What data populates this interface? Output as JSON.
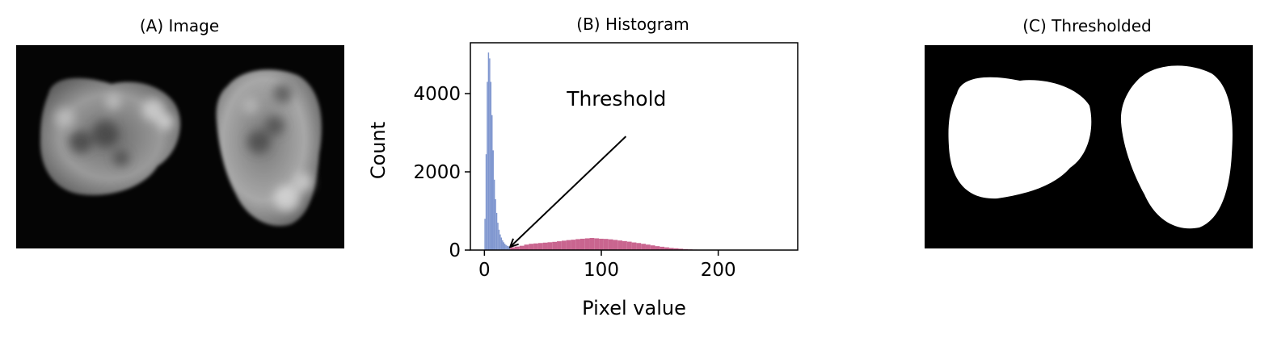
{
  "panels": {
    "image": {
      "title": "(A) Image"
    },
    "histogram": {
      "title": "(B) Histogram"
    },
    "thresholded": {
      "title": "(C) Thresholded"
    }
  },
  "colors": {
    "background_class": "#7f96cf",
    "foreground_class": "#c9658f",
    "image_background": "#000000",
    "mask_foreground": "#ffffff"
  },
  "chart_data": {
    "type": "bar",
    "title": "(B) Histogram",
    "xlabel": "Pixel value",
    "ylabel": "Count",
    "xlim": [
      -12,
      268
    ],
    "ylim": [
      0,
      5300
    ],
    "xticks": [
      0,
      100,
      200
    ],
    "yticks": [
      0,
      2000,
      4000
    ],
    "grid": false,
    "threshold": 22,
    "annotation": {
      "text": "Threshold",
      "text_x": 113,
      "text_y": 3400,
      "point_x": 22,
      "point_y": 80
    },
    "series": [
      {
        "bins": [
          0,
          1,
          2,
          3,
          4,
          5,
          6,
          7,
          8,
          9,
          10,
          11,
          12,
          13,
          14,
          15,
          16,
          17,
          18,
          19,
          20,
          21
        ],
        "counts": [
          800,
          2450,
          4300,
          5050,
          4900,
          4300,
          3450,
          2550,
          1800,
          1300,
          950,
          700,
          520,
          400,
          320,
          250,
          200,
          160,
          130,
          110,
          100,
          90
        ]
      },
      {
        "bins": [
          22,
          26,
          30,
          34,
          38,
          42,
          46,
          50,
          54,
          58,
          62,
          66,
          70,
          74,
          78,
          82,
          86,
          90,
          94,
          98,
          102,
          106,
          110,
          114,
          118,
          122,
          126,
          130,
          134,
          138,
          142,
          146,
          150,
          154,
          158,
          162,
          166,
          170,
          174,
          178,
          182,
          186,
          190
        ],
        "counts": [
          70,
          90,
          110,
          140,
          160,
          170,
          180,
          190,
          200,
          210,
          225,
          240,
          255,
          265,
          280,
          290,
          300,
          310,
          300,
          290,
          285,
          275,
          260,
          245,
          230,
          215,
          195,
          180,
          160,
          140,
          120,
          100,
          85,
          70,
          55,
          45,
          35,
          25,
          18,
          12,
          8,
          5,
          3
        ]
      }
    ]
  }
}
